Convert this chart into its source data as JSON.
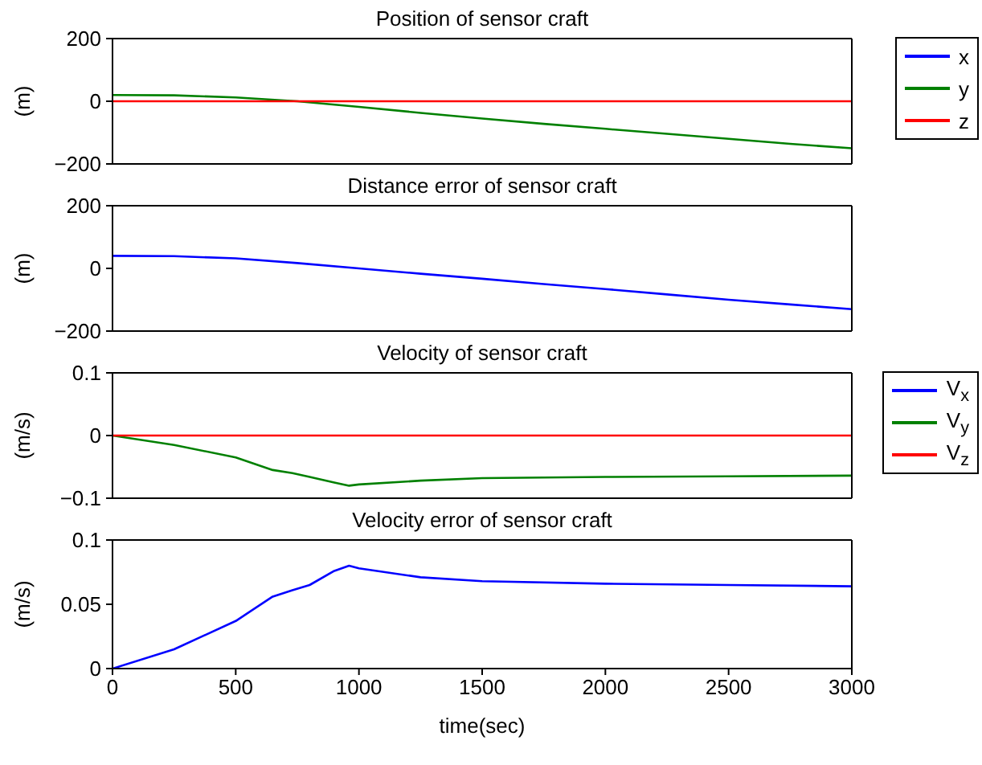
{
  "chart_data": [
    {
      "type": "line",
      "title": "Position of sensor craft",
      "ylabel": "(m)",
      "xlim": [
        0,
        3000
      ],
      "xticks": [
        0,
        500,
        1000,
        1500,
        2000,
        2500,
        3000
      ],
      "ylim": [
        -200,
        200
      ],
      "yticks": [
        -200,
        0,
        200
      ],
      "tick_labels": "y",
      "legend": "right",
      "grid": false,
      "marker": "none",
      "line_style": "solid",
      "series": [
        {
          "name": "x",
          "color": "#0000ff"
        },
        {
          "name": "y",
          "color": "#008000",
          "x": [
            0,
            250,
            500,
            750,
            1000,
            1250,
            1500,
            1750,
            2000,
            2250,
            2500,
            2750,
            3000
          ],
          "values": [
            20,
            19,
            12,
            0,
            -18,
            -37,
            -55,
            -72,
            -88,
            -104,
            -120,
            -136,
            -150
          ]
        },
        {
          "name": "z",
          "color": "#ff0000",
          "x": [
            0,
            3000
          ],
          "values": [
            0,
            0
          ]
        }
      ]
    },
    {
      "type": "line",
      "title": "Distance error of sensor craft",
      "ylabel": "(m)",
      "xlim": [
        0,
        3000
      ],
      "xticks": [
        0,
        500,
        1000,
        1500,
        2000,
        2500,
        3000
      ],
      "ylim": [
        -200,
        200
      ],
      "yticks": [
        -200,
        0,
        200
      ],
      "tick_labels": "y",
      "grid": false,
      "marker": "none",
      "line_style": "solid",
      "series": [
        {
          "color": "#0000ff",
          "x": [
            0,
            250,
            500,
            750,
            1000,
            1250,
            1500,
            1750,
            2000,
            2250,
            2500,
            2750,
            3000
          ],
          "values": [
            40,
            39,
            32,
            17,
            0,
            -17,
            -33,
            -50,
            -66,
            -83,
            -100,
            -115,
            -130
          ]
        }
      ]
    },
    {
      "type": "line",
      "title": "Velocity of sensor craft",
      "ylabel": "(m/s)",
      "xlim": [
        0,
        3000
      ],
      "xticks": [
        0,
        500,
        1000,
        1500,
        2000,
        2500,
        3000
      ],
      "ylim": [
        -0.1,
        0.1
      ],
      "yticks": [
        -0.1,
        0,
        0.1
      ],
      "tick_labels": "y",
      "legend": "right",
      "grid": false,
      "marker": "none",
      "line_style": "solid",
      "series": [
        {
          "name": "V$_{x}$",
          "color": "#0000ff"
        },
        {
          "name": "V$_{y}$",
          "color": "#008000",
          "x": [
            0,
            250,
            500,
            650,
            730,
            800,
            900,
            960,
            1000,
            1250,
            1500,
            2000,
            2500,
            3000
          ],
          "values": [
            0,
            -0.015,
            -0.035,
            -0.055,
            -0.06,
            -0.066,
            -0.075,
            -0.08,
            -0.078,
            -0.072,
            -0.068,
            -0.066,
            -0.065,
            -0.064
          ]
        },
        {
          "name": "V$_{z}$",
          "color": "#ff0000",
          "x": [
            0,
            3000
          ],
          "values": [
            0,
            0
          ]
        }
      ]
    },
    {
      "type": "line",
      "title": "Velocity error of sensor craft",
      "xlabel": "time(sec)",
      "ylabel": "(m/s)",
      "xlim": [
        0,
        3000
      ],
      "xticks": [
        0,
        500,
        1000,
        1500,
        2000,
        2500,
        3000
      ],
      "ylim": [
        0,
        0.1
      ],
      "yticks": [
        0,
        0.05,
        0.1
      ],
      "grid": false,
      "marker": "none",
      "line_style": "solid",
      "series": [
        {
          "color": "#0000ff",
          "x": [
            0,
            250,
            500,
            650,
            730,
            800,
            900,
            960,
            1000,
            1250,
            1500,
            2000,
            2500,
            3000
          ],
          "values": [
            0,
            0.015,
            0.037,
            0.056,
            0.061,
            0.065,
            0.076,
            0.08,
            0.078,
            0.071,
            0.068,
            0.066,
            0.065,
            0.064
          ]
        }
      ]
    }
  ]
}
